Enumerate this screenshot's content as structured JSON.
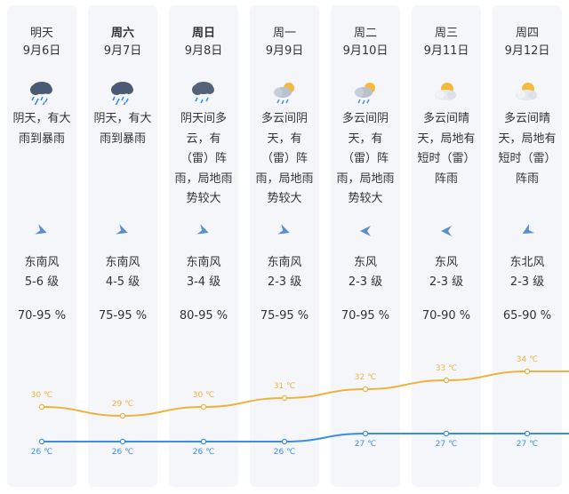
{
  "forecast": {
    "days": [
      {
        "day": "明天",
        "date": "9月6日",
        "icon": "rain-heavy-icon",
        "desc": [
          "阴天，有大",
          "雨到暴雨"
        ],
        "wind_dir": "东南风",
        "wind_level": "5-6 级",
        "humidity": "70-95 %",
        "high": "30 ℃",
        "low": "26 ℃"
      },
      {
        "day": "周六",
        "date": "9月7日",
        "icon": "rain-heavy-icon",
        "desc": [
          "阴天，有大",
          "雨到暴雨"
        ],
        "wind_dir": "东南风",
        "wind_level": "4-5 级",
        "humidity": "75-95 %",
        "high": "29 ℃",
        "low": "26 ℃"
      },
      {
        "day": "周日",
        "date": "9月8日",
        "icon": "thunder-rain-icon",
        "desc": [
          "阴天间多",
          "云，有",
          "（雷）阵",
          "雨，局地雨",
          "势较大"
        ],
        "wind_dir": "东南风",
        "wind_level": "3-4 级",
        "humidity": "80-95 %",
        "high": "30 ℃",
        "low": "26 ℃"
      },
      {
        "day": "周一",
        "date": "9月9日",
        "icon": "partly-cloudy-rain-icon",
        "desc": [
          "多云间阴",
          "天，有",
          "（雷）阵",
          "雨，局地雨",
          "势较大"
        ],
        "wind_dir": "东南风",
        "wind_level": "2-3 级",
        "humidity": "75-95 %",
        "high": "31 ℃",
        "low": "26 ℃"
      },
      {
        "day": "周二",
        "date": "9月10日",
        "icon": "partly-cloudy-rain-icon",
        "desc": [
          "多云间阴",
          "天，有",
          "（雷）阵",
          "雨，局地雨",
          "势较大"
        ],
        "wind_dir": "东风",
        "wind_level": "2-3 级",
        "humidity": "70-95 %",
        "high": "32 ℃",
        "low": "27 ℃"
      },
      {
        "day": "周三",
        "date": "9月11日",
        "icon": "sun-cloud-icon",
        "desc": [
          "多云间晴",
          "天，局地有",
          "短时（雷）",
          "阵雨"
        ],
        "wind_dir": "东风",
        "wind_level": "2-3 级",
        "humidity": "70-90 %",
        "high": "33 ℃",
        "low": "27 ℃"
      },
      {
        "day": "周四",
        "date": "9月12日",
        "icon": "sun-cloud-icon",
        "desc": [
          "多云间晴",
          "天，局地有",
          "短时（雷）",
          "阵雨"
        ],
        "wind_dir": "东北风",
        "wind_level": "2-3 级",
        "humidity": "65-90 %",
        "high": "34 ℃",
        "low": "27 ℃"
      }
    ]
  },
  "chart_data": {
    "type": "line",
    "x": [
      "9月6日",
      "9月7日",
      "9月8日",
      "9月9日",
      "9月10日",
      "9月11日",
      "9月12日"
    ],
    "series": [
      {
        "values": [
          30,
          29,
          30,
          31,
          32,
          33,
          34
        ],
        "color": "#f0b13c"
      },
      {
        "values": [
          26,
          26,
          26,
          26,
          27,
          27,
          27
        ],
        "color": "#3a8ee6"
      }
    ],
    "unit": "℃"
  },
  "colors": {
    "high_line": "#f0b13c",
    "low_line": "#3a8ee6",
    "column_bg": "#f4f6f9",
    "arrow": "#5b8fc7"
  }
}
